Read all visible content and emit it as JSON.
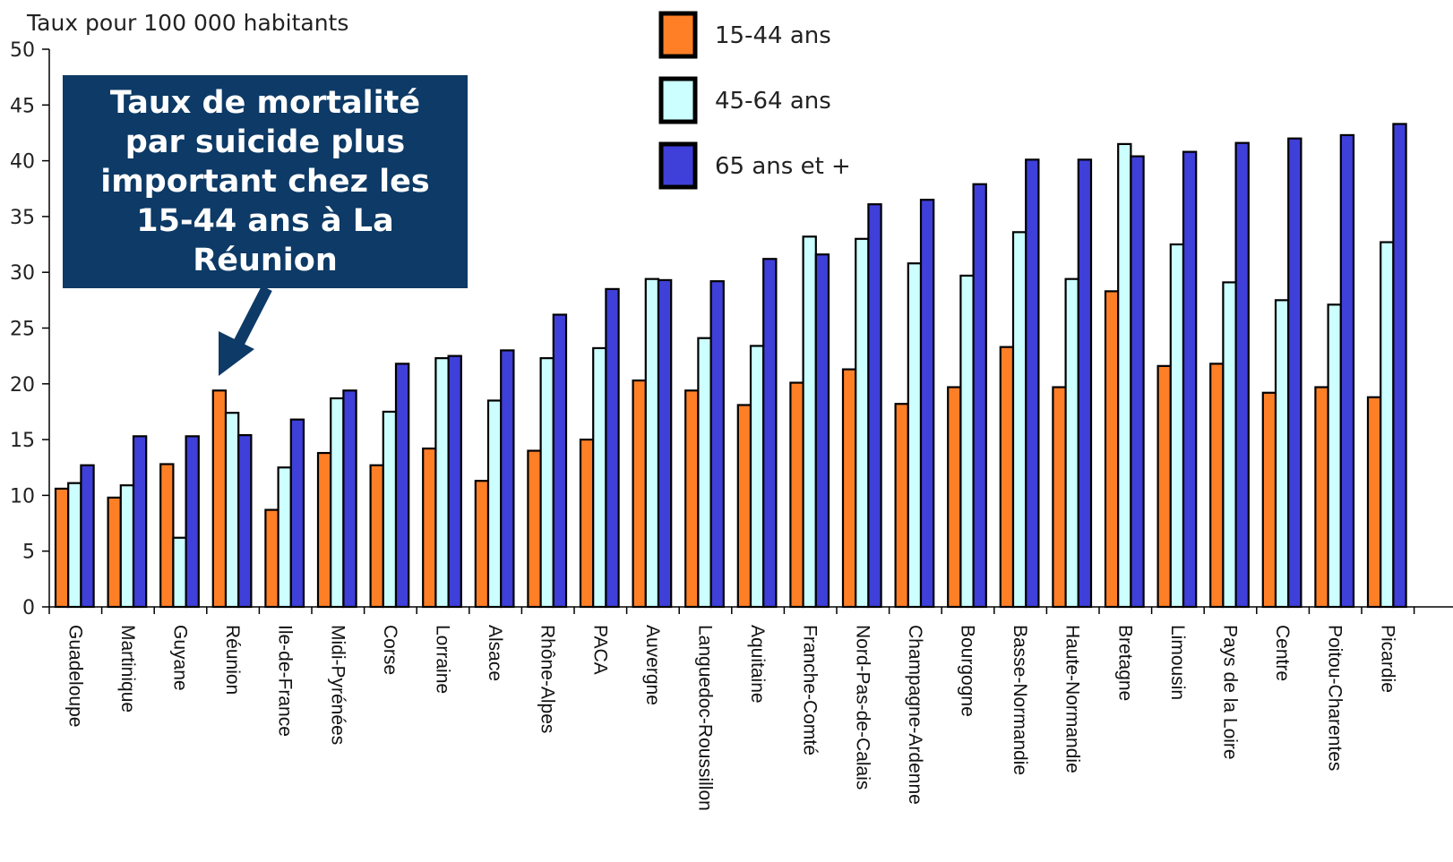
{
  "chart_data": {
    "type": "bar",
    "ylabel": "Taux pour 100 000 habitants",
    "ylim": [
      0,
      50
    ],
    "yticks": [
      "0",
      "5",
      "10",
      "15",
      "20",
      "25",
      "30",
      "35",
      "40",
      "45",
      "50"
    ],
    "grid": false,
    "legend_position": "top",
    "categories": [
      "Guadeloupe",
      "Martinique",
      "Guyane",
      "Réunion",
      "Ile-de-France",
      "Midi-Pyrénées",
      "Corse",
      "Lorraine",
      "Alsace",
      "Rhône-Alpes",
      "PACA",
      "Auvergne",
      "Languedoc-Roussillon",
      "Aquitaine",
      "Franche-Comté",
      "Nord-Pas-de-Calais",
      "Champagne-Ardenne",
      "Bourgogne",
      "Basse-Normandie",
      "Haute-Normandie",
      "Bretagne",
      "Limousin",
      "Pays de la Loire",
      "Centre",
      "Poitou-Charentes",
      "Picardie"
    ],
    "series": [
      {
        "name": "15-44 ans",
        "color": "#ff7f27",
        "values": [
          10.6,
          9.8,
          12.8,
          19.4,
          8.7,
          13.8,
          12.7,
          14.2,
          11.3,
          14.0,
          15.0,
          20.3,
          19.4,
          18.1,
          20.1,
          21.3,
          18.2,
          19.7,
          23.3,
          19.7,
          28.3,
          21.6,
          21.8,
          19.2,
          19.7,
          18.8
        ]
      },
      {
        "name": "45-64 ans",
        "color": "#ccffff",
        "values": [
          11.1,
          10.9,
          6.2,
          17.4,
          12.5,
          18.7,
          17.5,
          22.3,
          18.5,
          22.3,
          23.2,
          29.4,
          24.1,
          23.4,
          33.2,
          33.0,
          30.8,
          29.7,
          33.6,
          29.4,
          41.5,
          32.5,
          29.1,
          27.5,
          27.1,
          32.7
        ]
      },
      {
        "name": "65 ans et +",
        "color": "#3f3fd9",
        "values": [
          12.7,
          15.3,
          15.3,
          15.4,
          16.8,
          19.4,
          21.8,
          22.5,
          23.0,
          26.2,
          28.5,
          29.3,
          29.2,
          31.2,
          31.6,
          36.1,
          36.5,
          37.9,
          40.1,
          40.1,
          40.4,
          40.8,
          41.6,
          42.0,
          42.3,
          43.3
        ]
      }
    ],
    "annotation": "Taux de mortalité par suicide plus important chez les 15-44 ans à La Réunion"
  }
}
